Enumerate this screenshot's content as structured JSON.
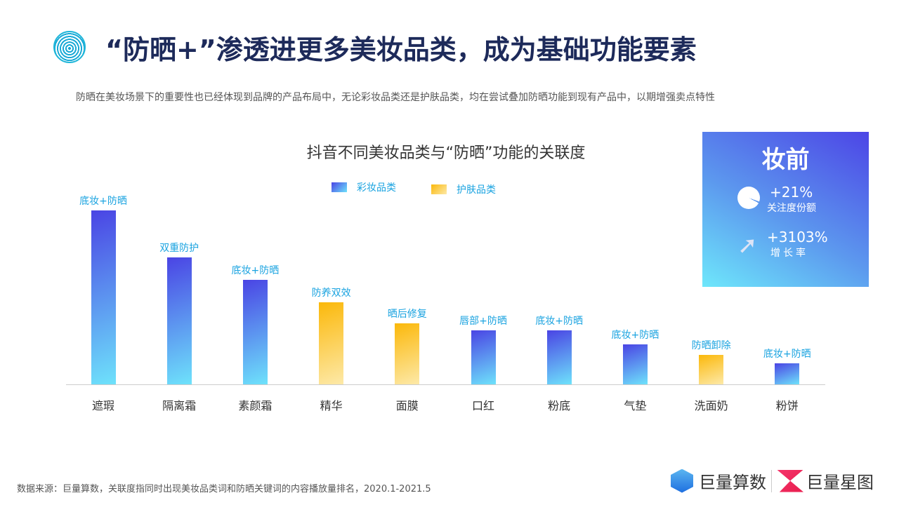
{
  "header": {
    "title": "“防晒+”渗透进更多美妆品类，成为基础功能要素",
    "subtitle": "防晒在美妆场景下的重要性也已经体现到品牌的产品布局中，无论彩妆品类还是护肤品类，均在尝试叠加防晒功能到现有产品中，以期增强卖点特性"
  },
  "chart_data": {
    "type": "bar",
    "title": "抖音不同美妆品类与“防晒”功能的关联度",
    "legend": [
      {
        "name": "彩妆品类",
        "color": "#4a44e4"
      },
      {
        "name": "护肤品类",
        "color": "#fbb80a"
      }
    ],
    "legend_placement": "top",
    "grid": false,
    "categories": [
      "遮瑕",
      "隔离霜",
      "素颜霜",
      "精华",
      "面膜",
      "口红",
      "粉底",
      "气垫",
      "洗面奶",
      "粉饼"
    ],
    "values": [
      100,
      73,
      60,
      47,
      35,
      31,
      31,
      23,
      17,
      12
    ],
    "groups": [
      "彩妆品类",
      "彩妆品类",
      "彩妆品类",
      "护肤品类",
      "护肤品类",
      "彩妆品类",
      "彩妆品类",
      "彩妆品类",
      "护肤品类",
      "彩妆品类"
    ],
    "data_labels": [
      "底妆+防晒",
      "双重防护",
      "底妆+防晒",
      "防养双效",
      "晒后修复",
      "唇部+防晒",
      "底妆+防晒",
      "底妆+防晒",
      "防晒卸除",
      "底妆+防晒"
    ]
  },
  "callout": {
    "title": "妆前",
    "icon1": "pie-chart-icon",
    "value1": "+21%",
    "label1": "关注度份额",
    "icon2": "trend-arrow-icon",
    "value2": "+3103%",
    "label2": "增长率"
  },
  "footer": {
    "source": "数据来源：巨量算数，关联度指同时出现美妆品类词和防晒关键词的内容播放量排名，2020.1-2021.5",
    "brand1": "巨量算数",
    "brand2": "巨量星图"
  }
}
